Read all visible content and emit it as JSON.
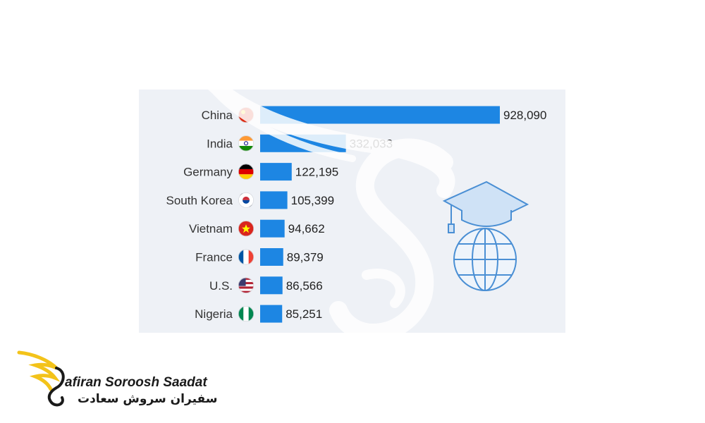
{
  "chart_data": {
    "type": "bar",
    "orientation": "horizontal",
    "categories": [
      "China",
      "India",
      "Germany",
      "South Korea",
      "Vietnam",
      "France",
      "U.S.",
      "Nigeria"
    ],
    "values": [
      928090,
      332033,
      122195,
      105399,
      94662,
      89379,
      86566,
      85251
    ],
    "value_labels": [
      "928,090",
      "332,033",
      "122,195",
      "105,399",
      "94,662",
      "89,379",
      "86,566",
      "85,251"
    ],
    "flags": [
      "china-flag-icon",
      "india-flag-icon",
      "germany-flag-icon",
      "south-korea-flag-icon",
      "vietnam-flag-icon",
      "france-flag-icon",
      "us-flag-icon",
      "nigeria-flag-icon"
    ],
    "title": "",
    "xlabel": "",
    "ylabel": "",
    "grid": false,
    "bar_color": "#1d86e3"
  },
  "brand": {
    "name": "afiran Soroosh Saadat",
    "name_fa": "سفیران سروش سعادت",
    "accent": "#f3c31a"
  },
  "watermark": {
    "icon": "graduation-cap-globe-icon",
    "color": "#4a8fd4"
  }
}
